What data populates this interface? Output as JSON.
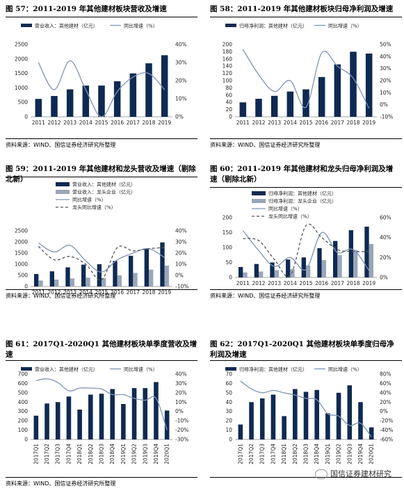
{
  "colors": {
    "bar_main": "#0F2A52",
    "bar_second": "#9AA6B8",
    "line_main": "#7F93B5",
    "line_second": "#555555"
  },
  "watermark": "国信证券建材研究",
  "charts": [
    {
      "id": "c57",
      "title_html": "图 57：2011-2019 年其他建材板块营收及增速",
      "source": "资料来源：WIND、国信证券经济研究所整理",
      "chart_data": {
        "type": "bar",
        "categories": [
          "2011",
          "2012",
          "2013",
          "2014",
          "2015",
          "2016",
          "2017",
          "2018",
          "2019"
        ],
        "series": [
          {
            "name": "营业收入：其他建材（亿元）",
            "kind": "bar",
            "axis": "left",
            "values": [
              620,
              720,
              950,
              1080,
              1080,
              1230,
              1500,
              1850,
              2130
            ]
          },
          {
            "name": "同比增速（%）",
            "kind": "line",
            "axis": "right",
            "values": [
              30,
              15,
              31,
              15,
              0,
              14,
              22,
              24,
              15
            ]
          }
        ],
        "ylim": [
          0,
          2500
        ],
        "yticks": [
          0,
          500,
          1000,
          1500,
          2000,
          2500
        ],
        "y2lim": [
          0,
          40
        ],
        "y2ticks": [
          "0%",
          "10%",
          "20%",
          "30%",
          "40%"
        ],
        "y2vals": [
          0,
          10,
          20,
          30,
          40
        ]
      }
    },
    {
      "id": "c58",
      "title_html": "图 58：2011-2019 年其他建材板块归母净利润及增速",
      "source": "资料来源：WIND、国信证券经济研究所整理",
      "chart_data": {
        "type": "bar",
        "categories": [
          "2011",
          "2012",
          "2013",
          "2014",
          "2015",
          "2016",
          "2017",
          "2018",
          "2019"
        ],
        "series": [
          {
            "name": "归母净利润：其他建材（亿元）",
            "kind": "bar",
            "axis": "left",
            "values": [
              40,
              50,
              58,
              70,
              76,
              110,
              145,
              180,
              175
            ]
          },
          {
            "name": "同比增速（%）",
            "kind": "line",
            "axis": "right",
            "values": [
              46,
              25,
              11,
              20,
              -2,
              43,
              32,
              22,
              -3
            ]
          }
        ],
        "ylim": [
          0,
          200
        ],
        "yticks": [
          0,
          20,
          40,
          60,
          80,
          100,
          120,
          140,
          160,
          180,
          200
        ],
        "y2lim": [
          -10,
          50
        ],
        "y2ticks": [
          "-10%",
          "0%",
          "10%",
          "20%",
          "30%",
          "40%",
          "50%"
        ],
        "y2vals": [
          -10,
          0,
          10,
          20,
          30,
          40,
          50
        ]
      }
    },
    {
      "id": "c59",
      "title_html": "图 59：2011-2019 年其他建材和龙头营收及增速（剔除北新）",
      "source": "资料来源：WIND、国信证券经济研究所整理",
      "chart_data": {
        "type": "bar",
        "categories": [
          "2011",
          "2012",
          "2013",
          "2014",
          "2015",
          "2016",
          "2017",
          "2018",
          "2019"
        ],
        "series": [
          {
            "name": "营业收入：其他建材（亿元）",
            "kind": "bar",
            "axis": "left",
            "values": [
              560,
              680,
              860,
              980,
              1000,
              1150,
              1380,
              1700,
              1980
            ]
          },
          {
            "name": "营业收入：龙头企业（亿元）",
            "kind": "bar2",
            "axis": "left",
            "values": [
              270,
              310,
              360,
              400,
              380,
              500,
              610,
              760,
              940
            ]
          },
          {
            "name": "同比增速（%）",
            "kind": "line",
            "axis": "right",
            "values": [
              29,
              21,
              27,
              13,
              3,
              14,
              20,
              24,
              16
            ]
          },
          {
            "name": "龙头同比增速（%）",
            "kind": "dash",
            "axis": "right",
            "values": [
              26,
              14,
              17,
              10,
              -4,
              25,
              22,
              24,
              25
            ]
          }
        ],
        "ylim": [
          0,
          2500
        ],
        "yticks": [
          0,
          500,
          1000,
          1500,
          2000,
          2500
        ],
        "y2lim": [
          -10,
          40
        ],
        "y2ticks": [
          "-10%",
          "0%",
          "10%",
          "20%",
          "30%",
          "40%"
        ],
        "y2vals": [
          -10,
          0,
          10,
          20,
          30,
          40
        ]
      }
    },
    {
      "id": "c60",
      "title_html": "图 60：2011-2019 年其他建材和龙头归母净利润及增速（剔除北新）",
      "source": "资料来源：WIND、国信证券经济研究所整理",
      "chart_data": {
        "type": "bar",
        "categories": [
          "2011",
          "2012",
          "2013",
          "2014",
          "2015",
          "2016",
          "2017",
          "2018",
          "2019"
        ],
        "series": [
          {
            "name": "归母净利润：其他建材（亿元）",
            "kind": "bar",
            "axis": "left",
            "values": [
              35,
              45,
              50,
              60,
              67,
              98,
              122,
              158,
              170
            ]
          },
          {
            "name": "归母净利润：龙头企业（亿元）",
            "kind": "bar2",
            "axis": "left",
            "values": [
              17,
              20,
              24,
              28,
              40,
              58,
              75,
              92,
              112
            ]
          },
          {
            "name": "同比增速（%）",
            "kind": "line",
            "axis": "right",
            "values": [
              47,
              27,
              11,
              20,
              8,
              45,
              25,
              28,
              7
            ]
          },
          {
            "name": "龙头同比增速（%）",
            "kind": "dash",
            "axis": "right",
            "values": [
              39,
              37,
              18,
              2,
              52,
              40,
              28,
              26,
              26
            ]
          }
        ],
        "ylim": [
          0,
          200
        ],
        "yticks": [
          0,
          50,
          100,
          150,
          200
        ],
        "y2lim": [
          0,
          60
        ],
        "y2ticks": [
          "0%",
          "20%",
          "40%",
          "60%"
        ],
        "y2vals": [
          0,
          20,
          40,
          60
        ]
      }
    },
    {
      "id": "c61",
      "title_html": "图 61：2017Q1-2020Q1 其他建材板块单季度营收及增速",
      "source": "资料来源：WIND、国信证券经济研究所整理",
      "chart_data": {
        "type": "bar",
        "categories": [
          "2017Q1",
          "2017Q2",
          "2017Q3",
          "2017Q4",
          "2018Q1",
          "2018Q2",
          "2018Q3",
          "2018Q4",
          "2019Q1",
          "2019Q2",
          "2019Q3",
          "2019Q4",
          "2020Q1"
        ],
        "series": [
          {
            "name": "营业收入：其他建材（亿元）",
            "kind": "bar",
            "axis": "left",
            "values": [
              255,
              385,
              400,
              460,
              320,
              480,
              490,
              540,
              380,
              550,
              550,
              615,
              310
            ]
          },
          {
            "name": "同比增速（%）",
            "kind": "line",
            "axis": "right",
            "values": [
              33,
              35,
              31,
              22,
              25,
              25,
              24,
              18,
              18,
              14,
              12,
              14,
              -20
            ]
          }
        ],
        "ylim": [
          0,
          700
        ],
        "yticks": [
          0,
          100,
          200,
          300,
          400,
          500,
          600,
          700
        ],
        "y2lim": [
          -30,
          40
        ],
        "y2ticks": [
          "-30%",
          "-20%",
          "-10%",
          "0%",
          "10%",
          "20%",
          "30%",
          "40%"
        ],
        "y2vals": [
          -30,
          -20,
          -10,
          0,
          10,
          20,
          30,
          40
        ]
      }
    },
    {
      "id": "c62",
      "title_html": "图 62：2017Q1-2020Q1 其他建材板块单季度归母净利润及增速",
      "source": "资料来源：WIND、国信证券经济研究所整理",
      "chart_data": {
        "type": "bar",
        "categories": [
          "2017Q1",
          "2017Q2",
          "2017Q3",
          "2017Q4",
          "2018Q1",
          "2018Q2",
          "2018Q3",
          "2018Q4",
          "2019Q1",
          "2019Q2",
          "2019Q3",
          "2019Q4",
          "2020Q1"
        ],
        "series": [
          {
            "name": "归母净利润：其他建材（亿元）",
            "kind": "bar",
            "axis": "left",
            "values": [
              16,
              40,
              44,
              48,
              25,
              54,
              51,
              53,
              28,
              50,
              58,
              40,
              13
            ]
          },
          {
            "name": "同比增速（%）",
            "kind": "line",
            "axis": "right",
            "values": [
              65,
              48,
              40,
              45,
              40,
              35,
              28,
              25,
              -5,
              -10,
              -30,
              -25,
              -55
            ]
          }
        ],
        "ylim": [
          0,
          70
        ],
        "yticks": [
          0,
          10,
          20,
          30,
          40,
          50,
          60,
          70
        ],
        "y2lim": [
          -60,
          80
        ],
        "y2ticks": [
          "-60%",
          "-40%",
          "-20%",
          "0%",
          "20%",
          "40%",
          "60%",
          "80%"
        ],
        "y2vals": [
          -60,
          -40,
          -20,
          0,
          20,
          40,
          60,
          80
        ]
      }
    }
  ]
}
